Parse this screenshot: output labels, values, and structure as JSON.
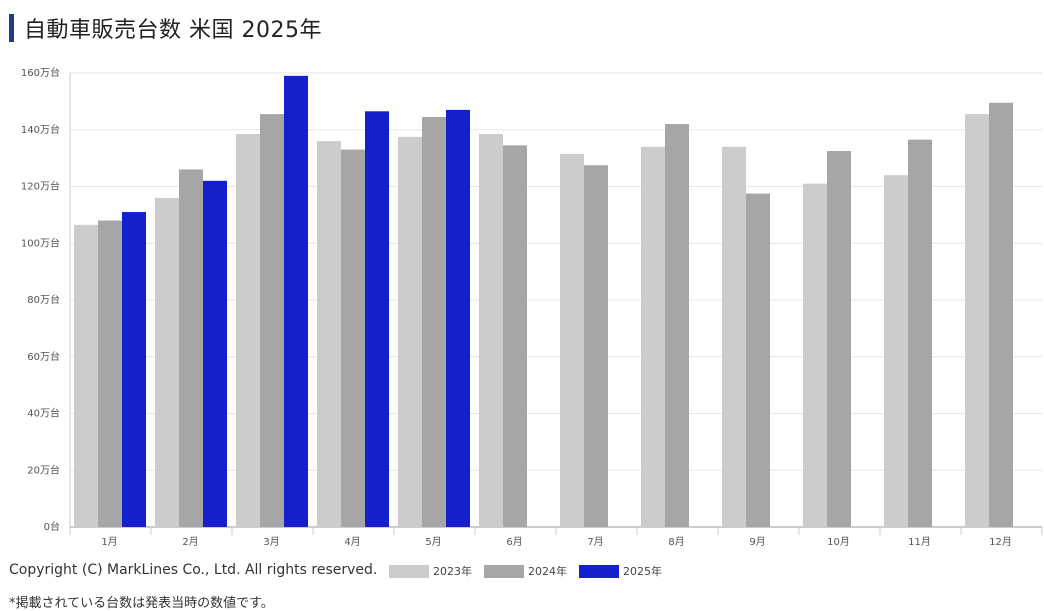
{
  "header": {
    "title": "自動車販売台数 米国 2025年"
  },
  "chart_data": {
    "type": "bar",
    "title": "自動車販売台数 米国 2025年",
    "categories": [
      "1月",
      "2月",
      "3月",
      "4月",
      "5月",
      "6月",
      "7月",
      "8月",
      "9月",
      "10月",
      "11月",
      "12月"
    ],
    "series": [
      {
        "name": "2023年",
        "color": "#cccccc",
        "values": [
          106.5,
          116,
          138.5,
          136,
          137.5,
          138.5,
          131.5,
          134,
          134,
          121,
          124,
          145.5
        ]
      },
      {
        "name": "2024年",
        "color": "#a6a6a6",
        "values": [
          108,
          126,
          145.5,
          133,
          144.5,
          134.5,
          127.5,
          142,
          117.5,
          132.5,
          136.5,
          149.5
        ]
      },
      {
        "name": "2025年",
        "color": "#1320cc",
        "values": [
          111,
          122,
          159,
          146.5,
          147,
          null,
          null,
          null,
          null,
          null,
          null,
          null
        ]
      }
    ],
    "ylim": [
      0,
      160
    ],
    "yticks": [
      {
        "value": 0,
        "label": "0台"
      },
      {
        "value": 20,
        "label": "20万台"
      },
      {
        "value": 40,
        "label": "40万台"
      },
      {
        "value": 60,
        "label": "60万台"
      },
      {
        "value": 80,
        "label": "80万台"
      },
      {
        "value": 100,
        "label": "100万台"
      },
      {
        "value": 120,
        "label": "120万台"
      },
      {
        "value": 140,
        "label": "140万台"
      },
      {
        "value": 160,
        "label": "160万台"
      }
    ],
    "grid": true,
    "legend_position": "bottom"
  },
  "footer": {
    "copyright": "Copyright (C) MarkLines Co., Ltd. All rights reserved.",
    "note": "*掲載されている台数は発表当時の数値です。"
  }
}
